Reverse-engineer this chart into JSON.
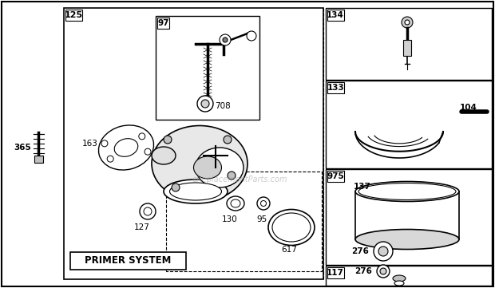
{
  "bg_color": "#ffffff",
  "ec": "#000000",
  "watermark": "eReplacementParts.com",
  "figsize": [
    6.2,
    3.61
  ],
  "dpi": 100
}
